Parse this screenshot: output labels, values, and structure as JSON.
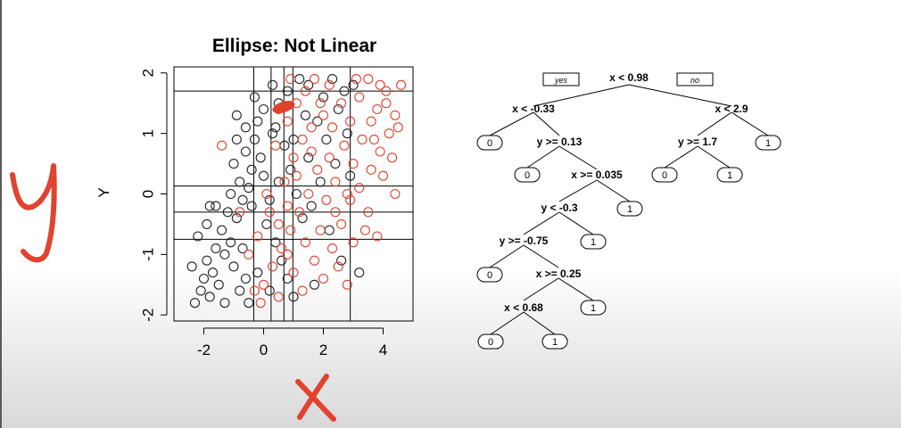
{
  "chart_data": {
    "type": "scatter",
    "title": "Ellipse: Not Linear",
    "xlabel": "",
    "ylabel": "Y",
    "xlim": [
      -3,
      5
    ],
    "ylim": [
      -2.1,
      2.1
    ],
    "xticks": [
      "-2",
      "0",
      "2",
      "4"
    ],
    "xtick_values": [
      -2,
      0,
      2,
      4
    ],
    "yticks": [
      "-2",
      "-1",
      "0",
      "1",
      "2"
    ],
    "ytick_values": [
      -2,
      -1,
      0,
      1,
      2
    ],
    "series": [
      {
        "color": "#222222",
        "points": [
          [
            -2.3,
            -1.8
          ],
          [
            -2.1,
            -1.6
          ],
          [
            -2.0,
            -1.4
          ],
          [
            -1.8,
            -1.7
          ],
          [
            -1.9,
            -1.1
          ],
          [
            -1.7,
            -1.3
          ],
          [
            -1.6,
            -0.9
          ],
          [
            -1.5,
            -1.5
          ],
          [
            -2.2,
            -0.7
          ],
          [
            -1.9,
            -0.5
          ],
          [
            -1.4,
            -0.6
          ],
          [
            -1.3,
            -1.0
          ],
          [
            -1.2,
            -0.3
          ],
          [
            -1.6,
            -0.2
          ],
          [
            -1.1,
            -0.8
          ],
          [
            -1.0,
            -1.2
          ],
          [
            -0.9,
            -0.4
          ],
          [
            -1.1,
            0.0
          ],
          [
            -0.8,
            0.2
          ],
          [
            -0.7,
            -0.9
          ],
          [
            -1.0,
            0.5
          ],
          [
            -0.6,
            0.7
          ],
          [
            -0.5,
            0.1
          ],
          [
            -0.4,
            -0.2
          ],
          [
            -0.3,
            0.9
          ],
          [
            -0.2,
            1.2
          ],
          [
            -0.1,
            0.6
          ],
          [
            0.0,
            0.3
          ],
          [
            0.2,
            -0.1
          ],
          [
            0.3,
            1.0
          ],
          [
            -0.9,
            1.3
          ],
          [
            -0.6,
            1.1
          ],
          [
            -0.3,
            1.6
          ],
          [
            0.0,
            1.4
          ],
          [
            0.3,
            1.8
          ],
          [
            0.5,
            1.5
          ],
          [
            0.7,
            0.8
          ],
          [
            0.9,
            0.4
          ],
          [
            1.1,
            0.0
          ],
          [
            1.3,
            -0.4
          ],
          [
            0.4,
            -0.8
          ],
          [
            0.6,
            -1.1
          ],
          [
            0.8,
            -1.4
          ],
          [
            1.0,
            -1.7
          ],
          [
            0.2,
            -1.6
          ],
          [
            -0.2,
            -1.3
          ],
          [
            -0.5,
            -1.8
          ],
          [
            -0.8,
            -1.6
          ],
          [
            1.5,
            0.6
          ],
          [
            1.8,
            1.2
          ],
          [
            2.0,
            1.6
          ],
          [
            2.3,
            1.9
          ],
          [
            2.5,
            1.4
          ],
          [
            2.7,
            1.7
          ],
          [
            2.1,
            0.9
          ],
          [
            1.9,
            0.2
          ],
          [
            1.6,
            -0.2
          ],
          [
            2.4,
            0.5
          ],
          [
            2.8,
            1.0
          ],
          [
            3.0,
            1.8
          ],
          [
            1.2,
            1.9
          ],
          [
            0.8,
            1.7
          ],
          [
            -0.4,
            0.4
          ],
          [
            -0.7,
            -0.1
          ],
          [
            -1.3,
            -1.8
          ],
          [
            -0.6,
            -1.4
          ],
          [
            0.1,
            -0.5
          ],
          [
            0.5,
            0.2
          ],
          [
            1.4,
            1.3
          ],
          [
            2.2,
            -0.6
          ],
          [
            2.6,
            -1.1
          ],
          [
            3.2,
            -1.3
          ],
          [
            1.7,
            -1.5
          ],
          [
            -2.4,
            -1.2
          ],
          [
            -1.8,
            -0.2
          ],
          [
            -0.9,
            0.9
          ],
          [
            0.4,
            1.1
          ],
          [
            1.0,
            0.9
          ],
          [
            1.5,
            1.8
          ],
          [
            2.9,
            0.3
          ]
        ]
      },
      {
        "color": "#e0412c",
        "points": [
          [
            0.5,
            1.4
          ],
          [
            0.8,
            1.2
          ],
          [
            1.1,
            1.5
          ],
          [
            1.4,
            1.7
          ],
          [
            1.7,
            1.9
          ],
          [
            2.0,
            1.3
          ],
          [
            2.3,
            1.1
          ],
          [
            2.6,
            1.5
          ],
          [
            2.9,
            1.2
          ],
          [
            3.2,
            1.6
          ],
          [
            3.5,
            1.9
          ],
          [
            3.8,
            1.4
          ],
          [
            4.1,
            1.7
          ],
          [
            4.4,
            1.3
          ],
          [
            4.6,
            1.8
          ],
          [
            4.2,
            1.0
          ],
          [
            3.9,
            0.7
          ],
          [
            3.6,
            0.4
          ],
          [
            3.3,
            0.9
          ],
          [
            3.0,
            0.5
          ],
          [
            2.7,
            0.8
          ],
          [
            2.4,
            0.2
          ],
          [
            2.1,
            -0.1
          ],
          [
            1.8,
            0.4
          ],
          [
            1.5,
            0.0
          ],
          [
            1.2,
            -0.3
          ],
          [
            0.9,
            -0.6
          ],
          [
            0.6,
            -0.9
          ],
          [
            0.3,
            -1.2
          ],
          [
            0.0,
            -1.5
          ],
          [
            0.2,
            -0.3
          ],
          [
            0.5,
            -0.5
          ],
          [
            0.8,
            -0.2
          ],
          [
            1.1,
            0.3
          ],
          [
            1.4,
            -0.8
          ],
          [
            1.7,
            -1.1
          ],
          [
            2.0,
            -1.4
          ],
          [
            2.3,
            -0.9
          ],
          [
            2.6,
            -0.5
          ],
          [
            2.9,
            -0.1
          ],
          [
            3.2,
            0.1
          ],
          [
            3.5,
            -0.3
          ],
          [
            3.8,
            -0.7
          ],
          [
            4.0,
            0.3
          ],
          [
            4.3,
            0.6
          ],
          [
            4.5,
            1.1
          ],
          [
            3.6,
            1.2
          ],
          [
            3.1,
            1.9
          ],
          [
            2.2,
            1.8
          ],
          [
            1.6,
            1.1
          ],
          [
            1.0,
            0.6
          ],
          [
            0.7,
            0.2
          ],
          [
            0.4,
            0.8
          ],
          [
            -0.2,
            -0.7
          ],
          [
            -0.5,
            -1.0
          ],
          [
            -0.1,
            -1.8
          ],
          [
            0.5,
            -1.7
          ],
          [
            1.0,
            -1.3
          ],
          [
            1.3,
            -1.6
          ],
          [
            1.9,
            -0.6
          ],
          [
            2.5,
            -1.2
          ],
          [
            2.8,
            -1.5
          ],
          [
            -1.4,
            0.8
          ],
          [
            -0.8,
            -0.3
          ],
          [
            0.1,
            0.0
          ],
          [
            1.6,
            0.7
          ],
          [
            2.8,
            0.0
          ],
          [
            3.4,
            -0.6
          ],
          [
            3.7,
            0.9
          ],
          [
            4.1,
            1.5
          ],
          [
            0.9,
            1.9
          ],
          [
            1.3,
            0.9
          ],
          [
            1.9,
            1.5
          ],
          [
            2.2,
            0.6
          ],
          [
            2.4,
            -0.3
          ],
          [
            -0.3,
            -1.6
          ],
          [
            0.8,
            -1.0
          ],
          [
            3.0,
            -0.8
          ],
          [
            4.4,
            0.0
          ],
          [
            3.9,
            1.8
          ]
        ]
      }
    ],
    "vlines": [
      -0.33,
      0.25,
      0.68,
      0.98,
      2.9
    ],
    "hlines": [
      1.7,
      0.13,
      -0.3,
      -0.75
    ],
    "tree": {
      "yes_label": "yes",
      "no_label": "no",
      "nodes": [
        "x < 0.98",
        "x < -0.33",
        "x < 2.9",
        "y >= 0.13",
        "y >= 1.7",
        "x >= 0.035",
        "y < -0.3",
        "y >= -0.75",
        "x >= 0.25",
        "x < 0.68"
      ],
      "leaves": [
        "0",
        "1",
        "0",
        "0",
        "1",
        "1",
        "1",
        "0",
        "1",
        "0",
        "1"
      ]
    }
  },
  "annotations": {
    "y_handwritten": "y",
    "x_handwritten": "X"
  }
}
